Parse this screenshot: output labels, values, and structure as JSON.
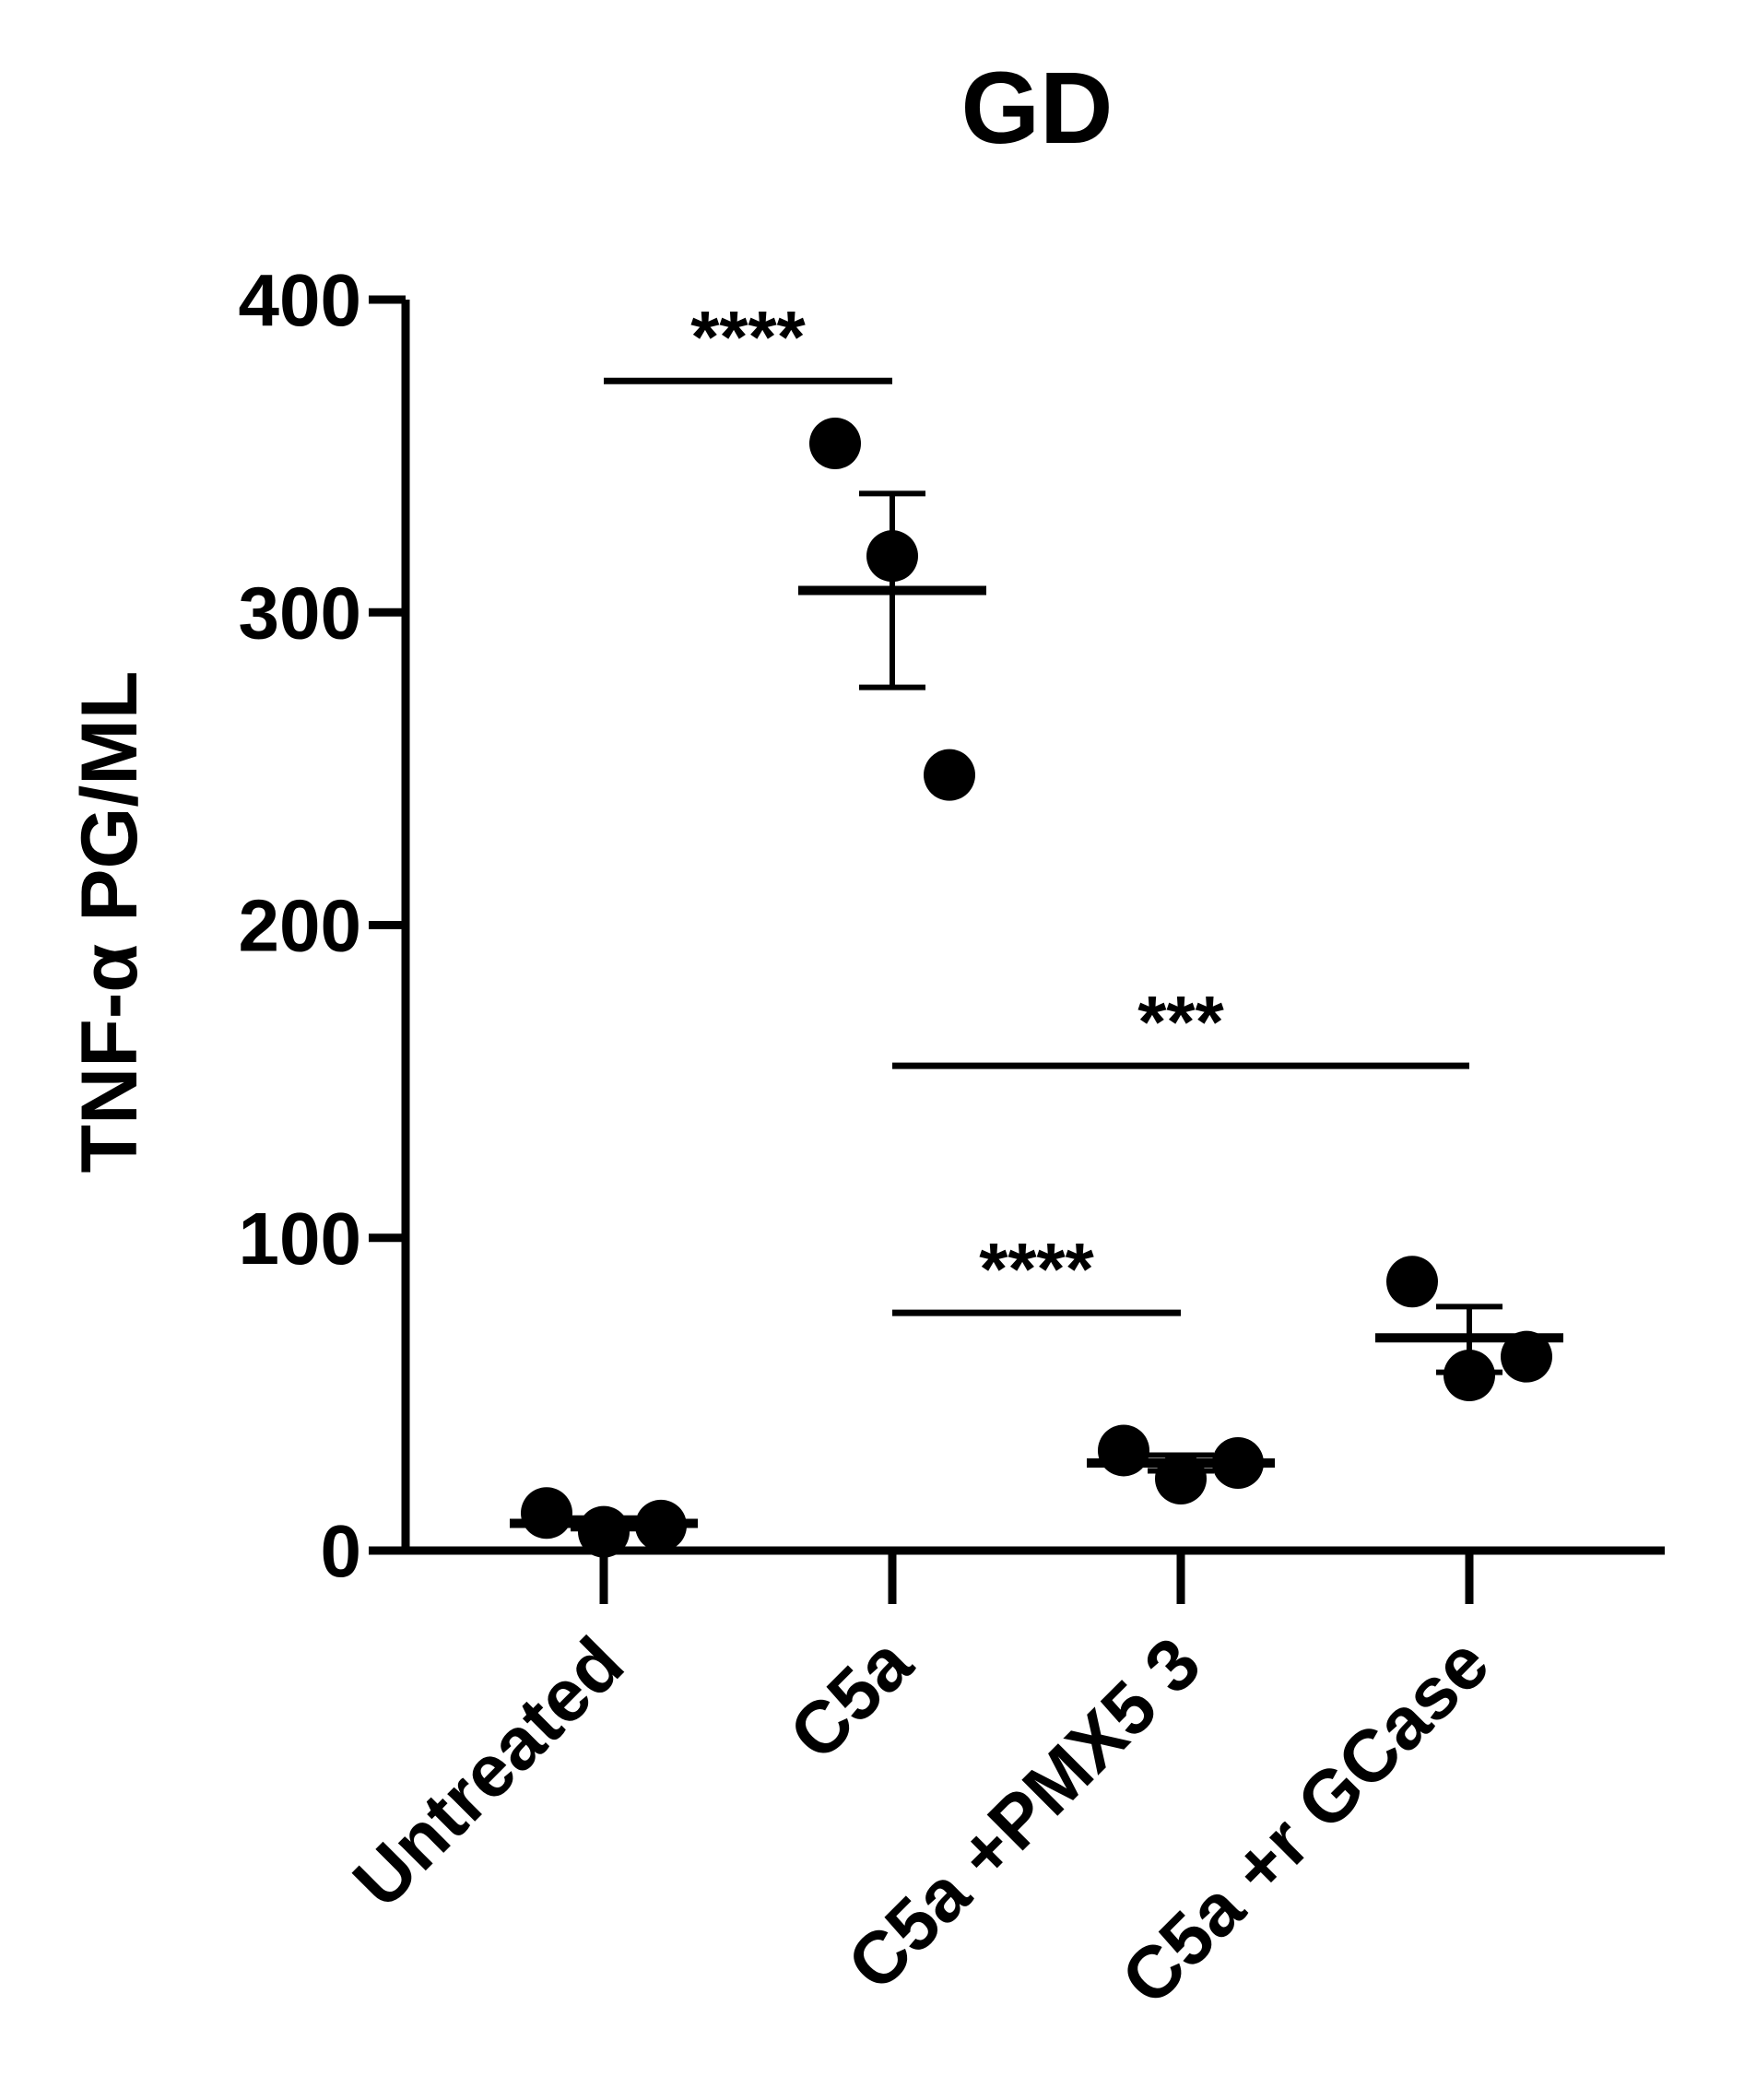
{
  "chart_data": {
    "type": "scatter",
    "title": "GD",
    "ylabel": "TNF-α PG/ML",
    "xlabel": "",
    "ylim": [
      0,
      400
    ],
    "yticks": [
      0,
      100,
      200,
      300,
      400
    ],
    "categories": [
      "Untreated",
      "C5a",
      "C5a +PMX5   3",
      "C5a +r GCase"
    ],
    "groups": [
      {
        "points": [
          12,
          6,
          8
        ],
        "mean": 8.7,
        "sem_low": 7.0,
        "sem_high": 10.4
      },
      {
        "points": [
          354,
          318,
          248
        ],
        "mean": 307,
        "sem_low": 276,
        "sem_high": 338
      },
      {
        "points": [
          32,
          23,
          28
        ],
        "mean": 28,
        "sem_low": 25.5,
        "sem_high": 30.5
      },
      {
        "points": [
          86,
          56,
          62
        ],
        "mean": 68,
        "sem_low": 57,
        "sem_high": 78
      }
    ],
    "significance": [
      {
        "from": 0,
        "to": 1,
        "y": 374,
        "label": "****"
      },
      {
        "from": 1,
        "to": 3,
        "y": 155,
        "label": "***"
      },
      {
        "from": 1,
        "to": 2,
        "y": 76,
        "label": "****"
      }
    ],
    "colors": {
      "marks": "#000000"
    },
    "grid": false,
    "legend": "none"
  }
}
